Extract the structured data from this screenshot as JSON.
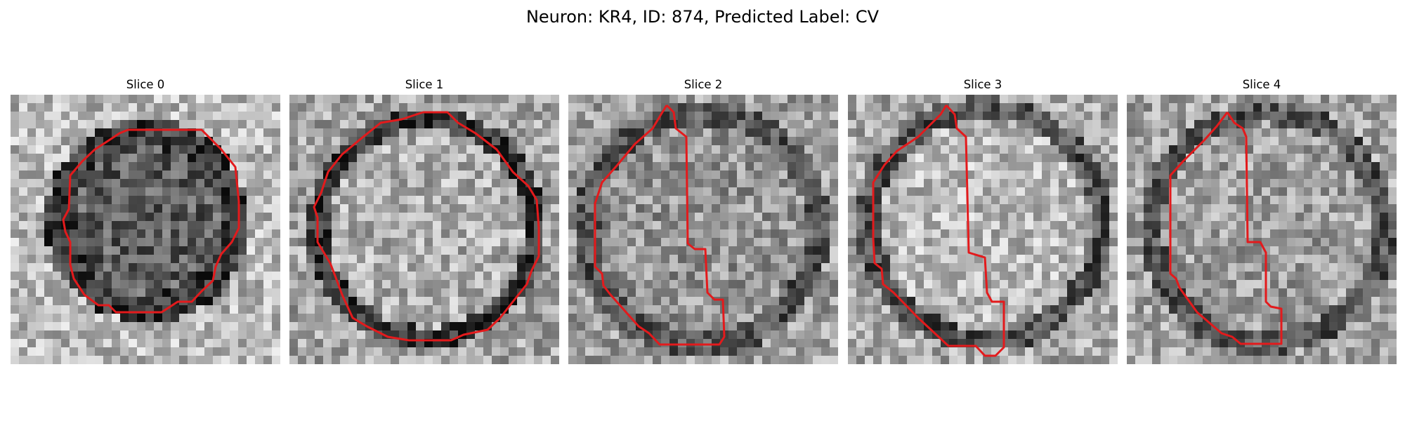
{
  "figure": {
    "title": "Neuron: KR4, ID: 874, Predicted Label: CV"
  },
  "panels": [
    {
      "title": "Slice 0"
    },
    {
      "title": "Slice 1"
    },
    {
      "title": "Slice 2"
    },
    {
      "title": "Slice 3"
    },
    {
      "title": "Slice 4"
    }
  ],
  "colors": {
    "outline": "#e31a1c"
  }
}
